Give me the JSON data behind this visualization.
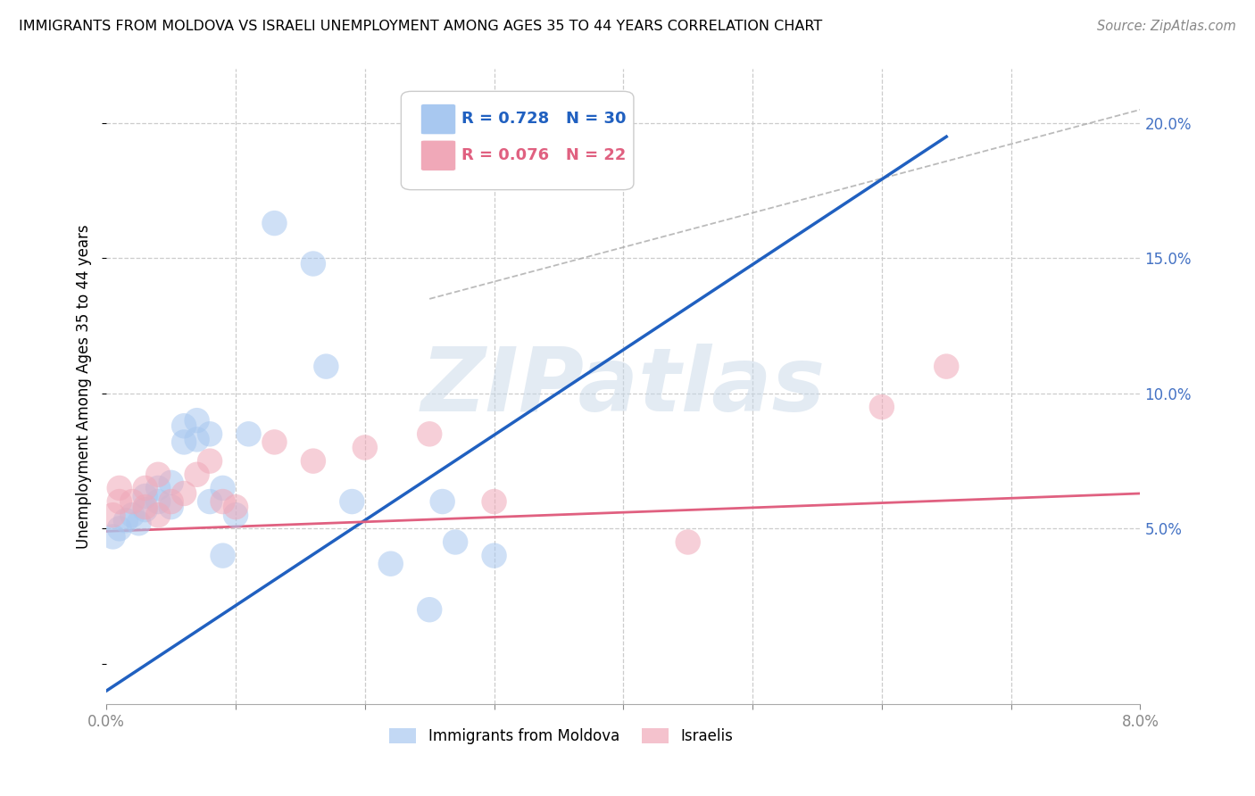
{
  "title": "IMMIGRANTS FROM MOLDOVA VS ISRAELI UNEMPLOYMENT AMONG AGES 35 TO 44 YEARS CORRELATION CHART",
  "source": "Source: ZipAtlas.com",
  "ylabel": "Unemployment Among Ages 35 to 44 years",
  "xlim": [
    0.0,
    0.08
  ],
  "ylim": [
    -0.015,
    0.22
  ],
  "yticks_right": [
    0.05,
    0.1,
    0.15,
    0.2
  ],
  "ytick_right_labels": [
    "5.0%",
    "10.0%",
    "15.0%",
    "20.0%"
  ],
  "blue_R": 0.728,
  "blue_N": 30,
  "pink_R": 0.076,
  "pink_N": 22,
  "blue_color": "#A8C8F0",
  "pink_color": "#F0A8B8",
  "blue_line_color": "#2060C0",
  "pink_line_color": "#E06080",
  "blue_scatter_x": [
    0.0005,
    0.001,
    0.0015,
    0.002,
    0.0025,
    0.003,
    0.003,
    0.004,
    0.004,
    0.005,
    0.005,
    0.006,
    0.006,
    0.007,
    0.007,
    0.008,
    0.008,
    0.009,
    0.009,
    0.01,
    0.011,
    0.013,
    0.016,
    0.017,
    0.019,
    0.022,
    0.025,
    0.026,
    0.027,
    0.03
  ],
  "blue_scatter_y": [
    0.047,
    0.05,
    0.053,
    0.055,
    0.052,
    0.057,
    0.062,
    0.06,
    0.065,
    0.058,
    0.067,
    0.082,
    0.088,
    0.083,
    0.09,
    0.085,
    0.06,
    0.065,
    0.04,
    0.055,
    0.085,
    0.163,
    0.148,
    0.11,
    0.06,
    0.037,
    0.02,
    0.06,
    0.045,
    0.04
  ],
  "pink_scatter_x": [
    0.0005,
    0.001,
    0.001,
    0.002,
    0.003,
    0.003,
    0.004,
    0.004,
    0.005,
    0.006,
    0.007,
    0.008,
    0.009,
    0.01,
    0.013,
    0.016,
    0.02,
    0.025,
    0.03,
    0.045,
    0.06,
    0.065
  ],
  "pink_scatter_y": [
    0.055,
    0.06,
    0.065,
    0.06,
    0.058,
    0.065,
    0.07,
    0.055,
    0.06,
    0.063,
    0.07,
    0.075,
    0.06,
    0.058,
    0.082,
    0.075,
    0.08,
    0.085,
    0.06,
    0.045,
    0.095,
    0.11
  ],
  "blue_line_x": [
    0.0,
    0.065
  ],
  "blue_line_y": [
    -0.01,
    0.195
  ],
  "pink_line_x": [
    0.0,
    0.08
  ],
  "pink_line_y": [
    0.049,
    0.063
  ],
  "diag_line_x": [
    0.025,
    0.08
  ],
  "diag_line_y": [
    0.135,
    0.205
  ],
  "watermark": "ZIPatlas"
}
